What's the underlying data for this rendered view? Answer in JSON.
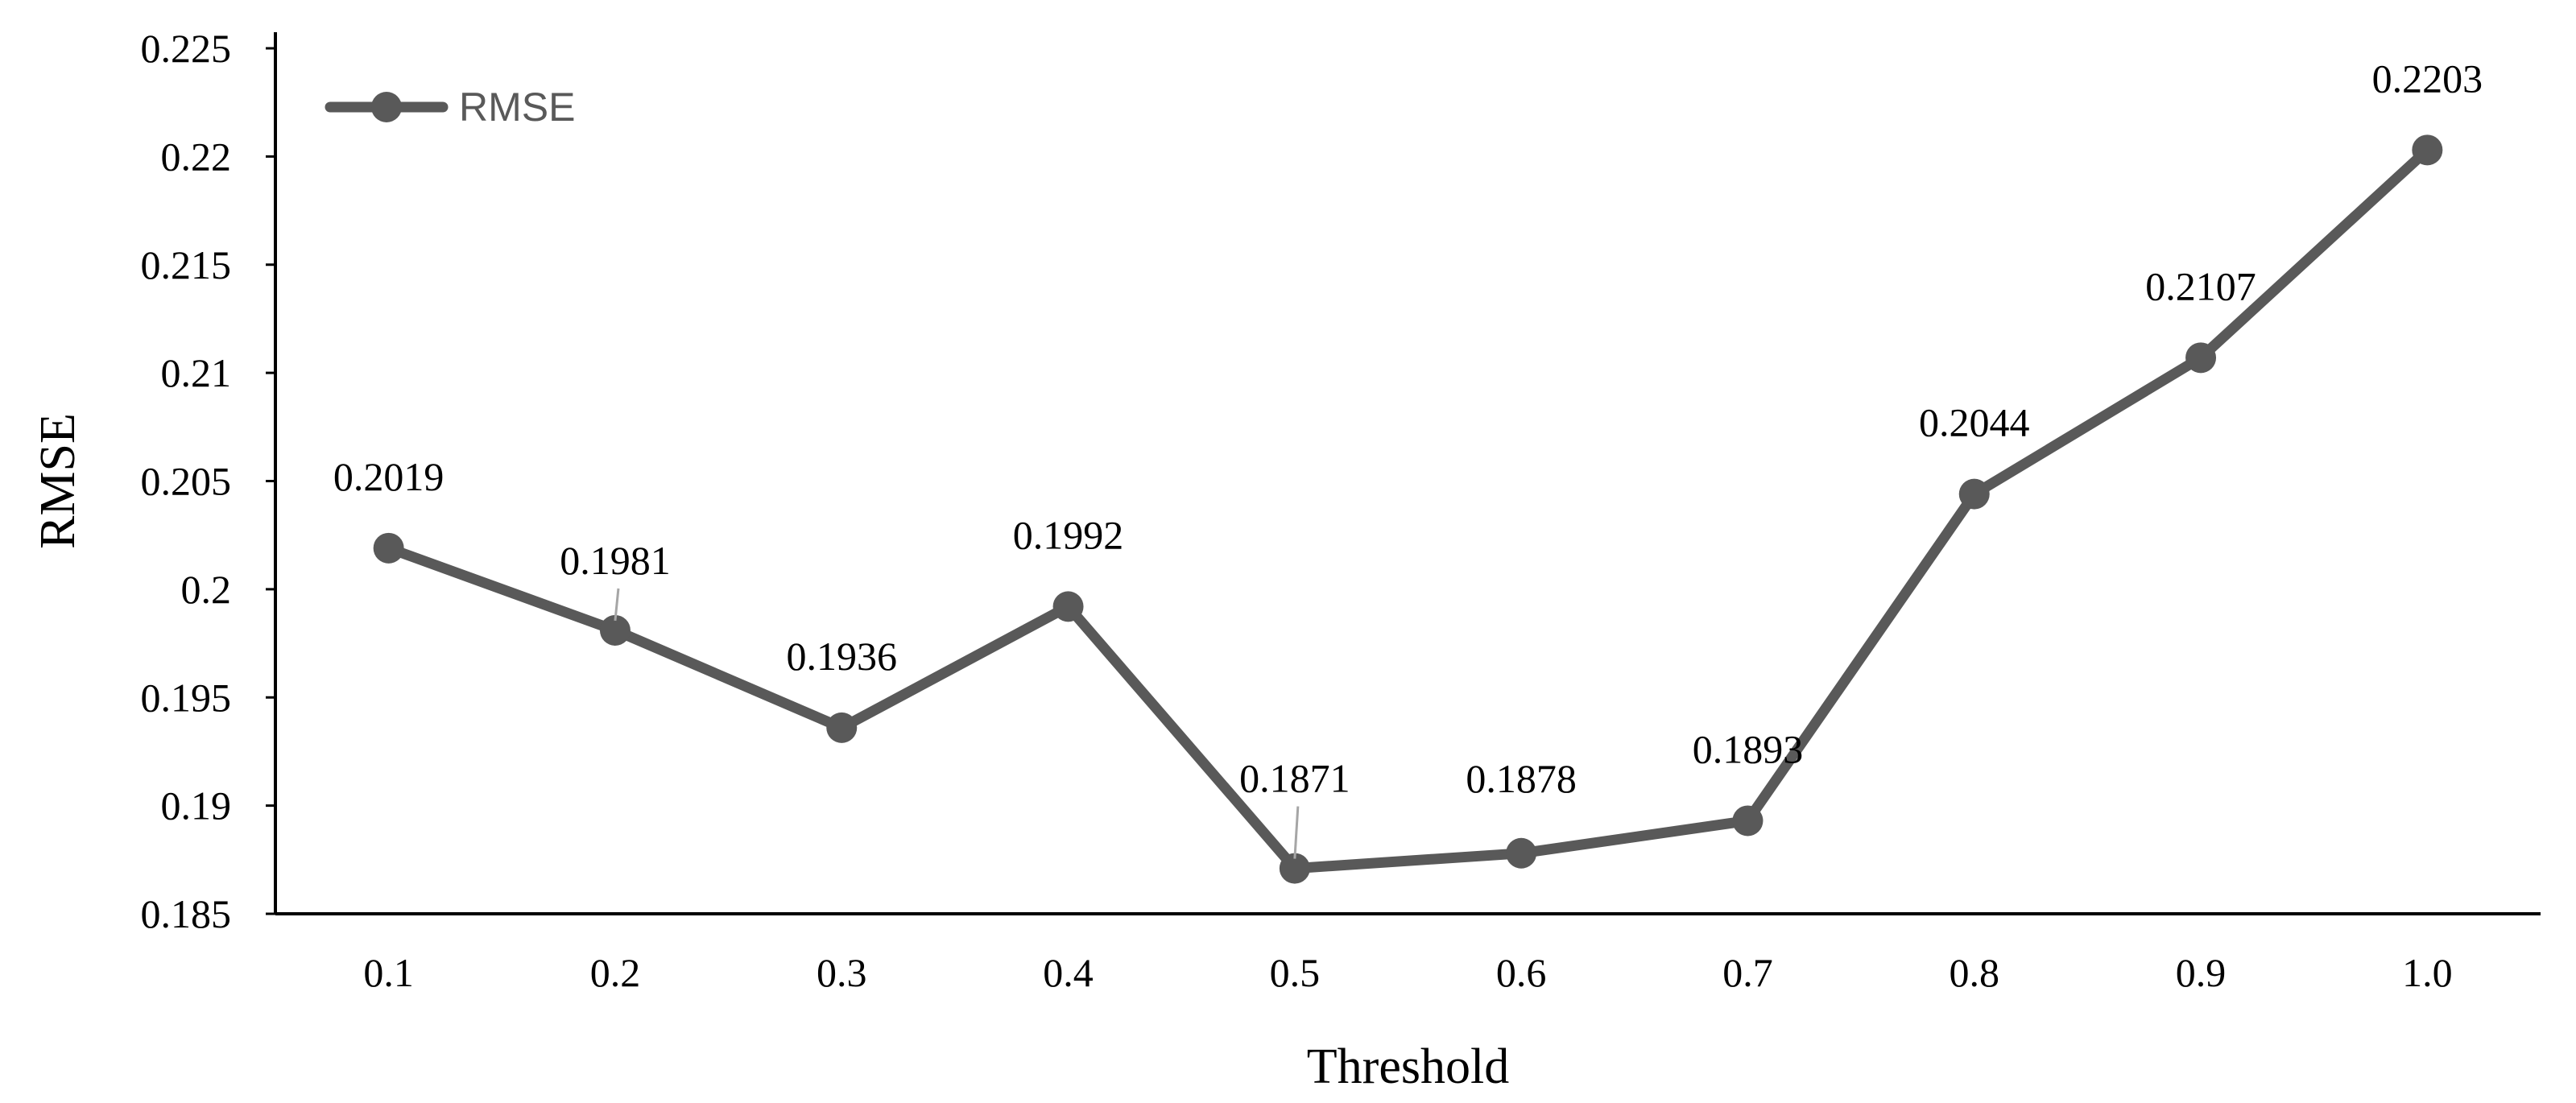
{
  "chart_data": {
    "type": "line",
    "title": "",
    "xlabel": "Threshold",
    "ylabel": "RMSE",
    "categories": [
      "0.1",
      "0.2",
      "0.3",
      "0.4",
      "0.5",
      "0.6",
      "0.7",
      "0.8",
      "0.9",
      "1.0"
    ],
    "series": [
      {
        "name": "RMSE",
        "values": [
          0.2019,
          0.1981,
          0.1936,
          0.1992,
          0.1871,
          0.1878,
          0.1893,
          0.2044,
          0.2107,
          0.2203
        ],
        "labels": [
          "0.2019",
          "0.1981",
          "0.1936",
          "0.1992",
          "0.1871",
          "0.1878",
          "0.1893",
          "0.2044",
          "0.2107",
          "0.2203"
        ],
        "color": "#595959"
      }
    ],
    "ylim": [
      0.185,
      0.225
    ],
    "yticks": [
      "0.185",
      "0.19",
      "0.195",
      "0.2",
      "0.205",
      "0.21",
      "0.215",
      "0.22",
      "0.225"
    ],
    "grid": false,
    "legend": "top-left"
  }
}
